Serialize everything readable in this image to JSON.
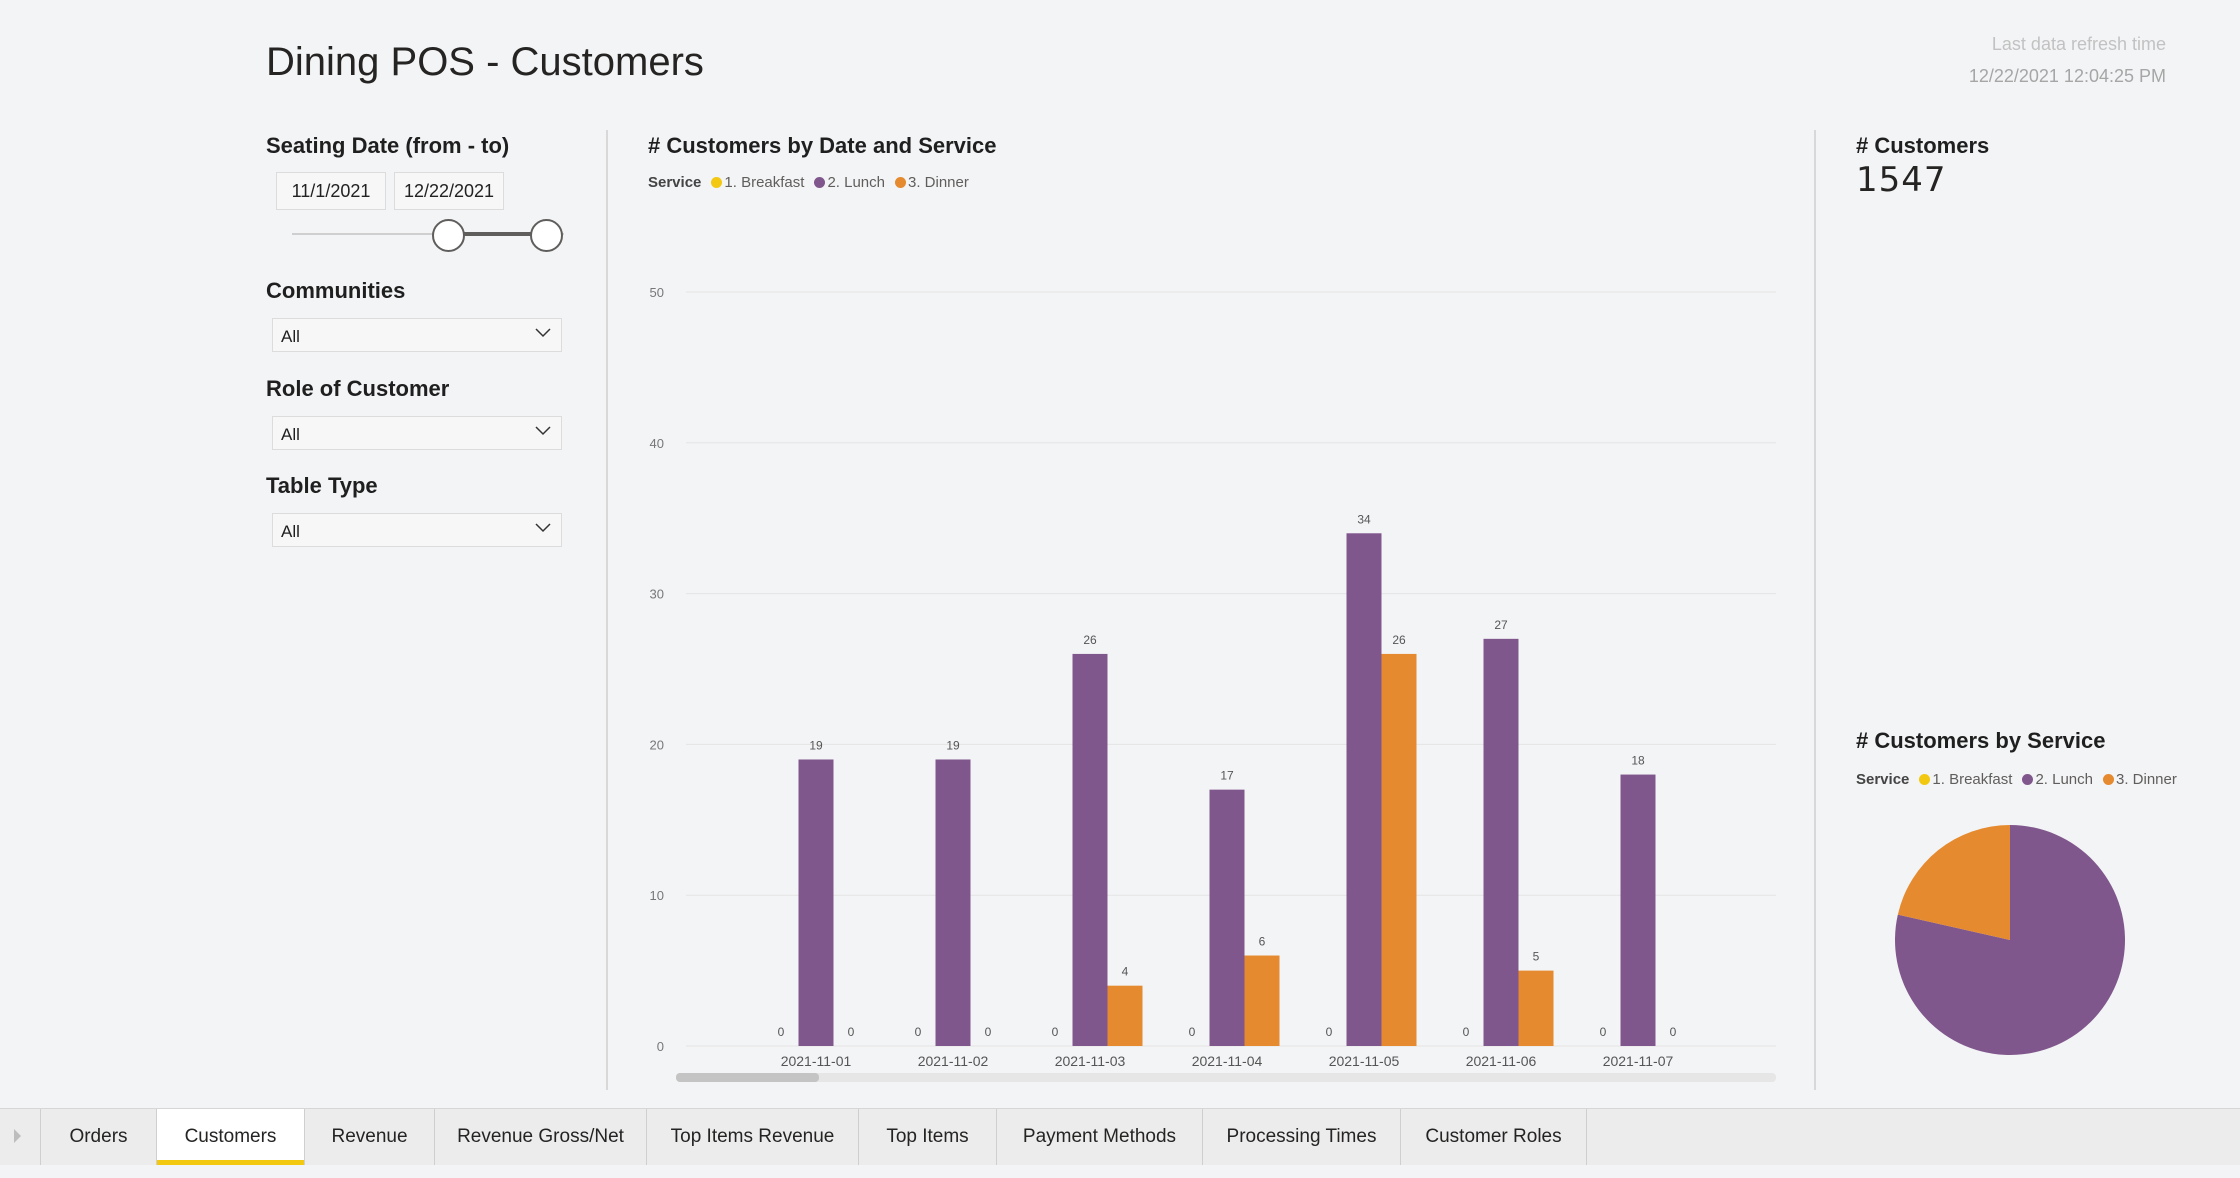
{
  "header": {
    "title": "Dining POS - Customers",
    "refresh_label": "Last data refresh time",
    "refresh_time": "12/22/2021 12:04:25 PM"
  },
  "filters": {
    "seating_date": {
      "title": "Seating Date (from - to)",
      "from": "11/1/2021",
      "to": "12/22/2021",
      "range_fraction": [
        0.57,
        0.93
      ]
    },
    "communities": {
      "title": "Communities",
      "value": "All"
    },
    "role": {
      "title": "Role of Customer",
      "value": "All"
    },
    "table_type": {
      "title": "Table Type",
      "value": "All"
    }
  },
  "kpi": {
    "title": "# Customers",
    "value": "1547"
  },
  "colors": {
    "breakfast": "#f2c811",
    "lunch": "#80578c",
    "dinner": "#e58a2f"
  },
  "chart_data": [
    {
      "type": "bar",
      "title": "# Customers by Date and Service",
      "legend_title": "Service",
      "categories": [
        "2021-11-01",
        "2021-11-02",
        "2021-11-03",
        "2021-11-04",
        "2021-11-05",
        "2021-11-06",
        "2021-11-07"
      ],
      "series": [
        {
          "name": "1. Breakfast",
          "values": [
            0,
            0,
            0,
            0,
            0,
            0,
            0
          ]
        },
        {
          "name": "2. Lunch",
          "values": [
            19,
            19,
            26,
            17,
            34,
            27,
            18
          ]
        },
        {
          "name": "3. Dinner",
          "values": [
            0,
            0,
            4,
            6,
            26,
            5,
            0
          ]
        }
      ],
      "yticks": [
        "0",
        "10",
        "20",
        "30",
        "40",
        "50"
      ],
      "ylim": [
        0,
        50
      ],
      "scroll_fraction": 0.13
    },
    {
      "type": "pie",
      "title": "# Customers by Service",
      "legend_title": "Service",
      "labels": [
        "1. Breakfast",
        "2. Lunch",
        "3. Dinner"
      ],
      "values": [
        0,
        1215,
        332
      ]
    }
  ],
  "tabs": [
    {
      "label": "Orders",
      "active": false
    },
    {
      "label": "Customers",
      "active": true
    },
    {
      "label": "Revenue",
      "active": false
    },
    {
      "label": "Revenue Gross/Net",
      "active": false
    },
    {
      "label": "Top Items Revenue",
      "active": false
    },
    {
      "label": "Top Items",
      "active": false
    },
    {
      "label": "Payment Methods",
      "active": false
    },
    {
      "label": "Processing Times",
      "active": false
    },
    {
      "label": "Customer Roles",
      "active": false
    }
  ]
}
